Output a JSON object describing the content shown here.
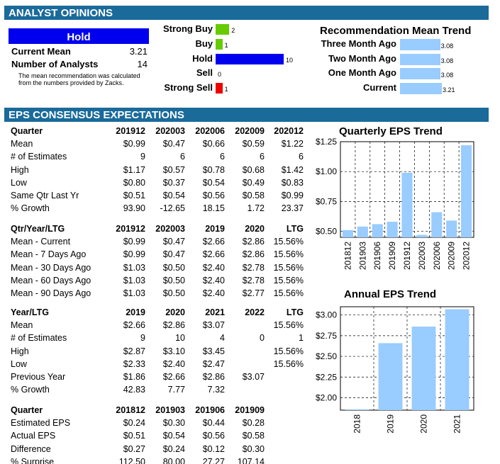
{
  "analyst": {
    "header": "ANALYST OPINIONS",
    "hold_label": "Hold",
    "current_mean_label": "Current Mean",
    "current_mean_value": "3.21",
    "num_analysts_label": "Number of Analysts",
    "num_analysts_value": "14",
    "note": "The mean recommendation was calculated from the numbers provided by Zacks.",
    "recommendations": [
      {
        "label": "Strong Buy",
        "count": 2,
        "color": "#66cc00"
      },
      {
        "label": "Buy",
        "count": 1,
        "color": "#66cc00"
      },
      {
        "label": "Hold",
        "count": 10,
        "color": "#0000ee"
      },
      {
        "label": "Sell",
        "count": 0,
        "color": "#ee0000"
      },
      {
        "label": "Strong Sell",
        "count": 1,
        "color": "#ee0000"
      }
    ],
    "trend_title": "Recommendation Mean Trend",
    "trend": [
      {
        "label": "Three Month Ago",
        "value": "3.08"
      },
      {
        "label": "Two Month Ago",
        "value": "3.08"
      },
      {
        "label": "One Month Ago",
        "value": "3.08"
      },
      {
        "label": "Current",
        "value": "3.21"
      }
    ]
  },
  "eps": {
    "header": "EPS CONSENSUS EXPECTATIONS",
    "table1": {
      "headers": [
        "Quarter",
        "201912",
        "202003",
        "202006",
        "202009",
        "202012"
      ],
      "rows": [
        [
          "Mean",
          "$0.99",
          "$0.47",
          "$0.66",
          "$0.59",
          "$1.22"
        ],
        [
          "# of Estimates",
          "9",
          "6",
          "6",
          "6",
          "6"
        ],
        [
          "High",
          "$1.17",
          "$0.57",
          "$0.78",
          "$0.68",
          "$1.42"
        ],
        [
          "Low",
          "$0.80",
          "$0.37",
          "$0.54",
          "$0.49",
          "$0.83"
        ],
        [
          "Same Qtr Last Yr",
          "$0.51",
          "$0.54",
          "$0.56",
          "$0.58",
          "$0.99"
        ],
        [
          "% Growth",
          "93.90",
          "-12.65",
          "18.15",
          "1.72",
          "23.37"
        ]
      ]
    },
    "table2": {
      "headers": [
        "Qtr/Year/LTG",
        "201912",
        "202003",
        "2019",
        "2020",
        "LTG"
      ],
      "rows": [
        [
          "Mean - Current",
          "$0.99",
          "$0.47",
          "$2.66",
          "$2.86",
          "15.56%"
        ],
        [
          "Mean - 7 Days Ago",
          "$0.99",
          "$0.47",
          "$2.66",
          "$2.86",
          "15.56%"
        ],
        [
          "Mean - 30 Days Ago",
          "$1.03",
          "$0.50",
          "$2.40",
          "$2.78",
          "15.56%"
        ],
        [
          "Mean - 60 Days Ago",
          "$1.03",
          "$0.50",
          "$2.40",
          "$2.78",
          "15.56%"
        ],
        [
          "Mean - 90 Days Ago",
          "$1.03",
          "$0.50",
          "$2.40",
          "$2.77",
          "15.56%"
        ]
      ]
    },
    "table3": {
      "headers": [
        "Year/LTG",
        "2019",
        "2020",
        "2021",
        "2022",
        "LTG"
      ],
      "rows": [
        [
          "Mean",
          "$2.66",
          "$2.86",
          "$3.07",
          "",
          "15.56%"
        ],
        [
          "# of Estimates",
          "9",
          "10",
          "4",
          "0",
          "1"
        ],
        [
          "High",
          "$2.87",
          "$3.10",
          "$3.45",
          "",
          "15.56%"
        ],
        [
          "Low",
          "$2.33",
          "$2.40",
          "$2.47",
          "",
          "15.56%"
        ],
        [
          "Previous Year",
          "$1.86",
          "$2.66",
          "$2.86",
          "$3.07",
          ""
        ],
        [
          "% Growth",
          "42.83",
          "7.77",
          "7.32",
          "",
          ""
        ]
      ]
    },
    "table4": {
      "headers": [
        "Quarter",
        "201812",
        "201903",
        "201906",
        "201909"
      ],
      "rows": [
        [
          "Estimated EPS",
          "$0.24",
          "$0.30",
          "$0.44",
          "$0.28"
        ],
        [
          "Actual EPS",
          "$0.51",
          "$0.54",
          "$0.56",
          "$0.58"
        ],
        [
          "Difference",
          "$0.27",
          "$0.24",
          "$0.12",
          "$0.30"
        ],
        [
          "% Surprise",
          "112.50",
          "80.00",
          "27.27",
          "107.14"
        ]
      ]
    }
  },
  "chart_data": [
    {
      "type": "bar",
      "title": "Quarterly EPS Trend",
      "categories": [
        "201812",
        "201903",
        "201906",
        "201909",
        "201912",
        "202003",
        "202006",
        "202009",
        "202012"
      ],
      "values": [
        0.51,
        0.54,
        0.56,
        0.58,
        0.99,
        0.47,
        0.66,
        0.59,
        1.22
      ],
      "ylim": [
        0.45,
        1.25
      ],
      "yticks": [
        "$0.50",
        "$0.75",
        "$1.00",
        "$1.25"
      ],
      "ytick_values": [
        0.5,
        0.75,
        1.0,
        1.25
      ],
      "grid": true,
      "bar_color": "#99ccff"
    },
    {
      "type": "bar",
      "title": "Annual EPS Trend",
      "categories": [
        "2018",
        "2019",
        "2020",
        "2021"
      ],
      "values": [
        1.86,
        2.66,
        2.86,
        3.07
      ],
      "ylim": [
        1.85,
        3.1
      ],
      "yticks": [
        "$2.00",
        "$2.25",
        "$2.50",
        "$2.75",
        "$3.00"
      ],
      "ytick_values": [
        2.0,
        2.25,
        2.5,
        2.75,
        3.0
      ],
      "grid": true,
      "bar_color": "#99ccff"
    }
  ]
}
